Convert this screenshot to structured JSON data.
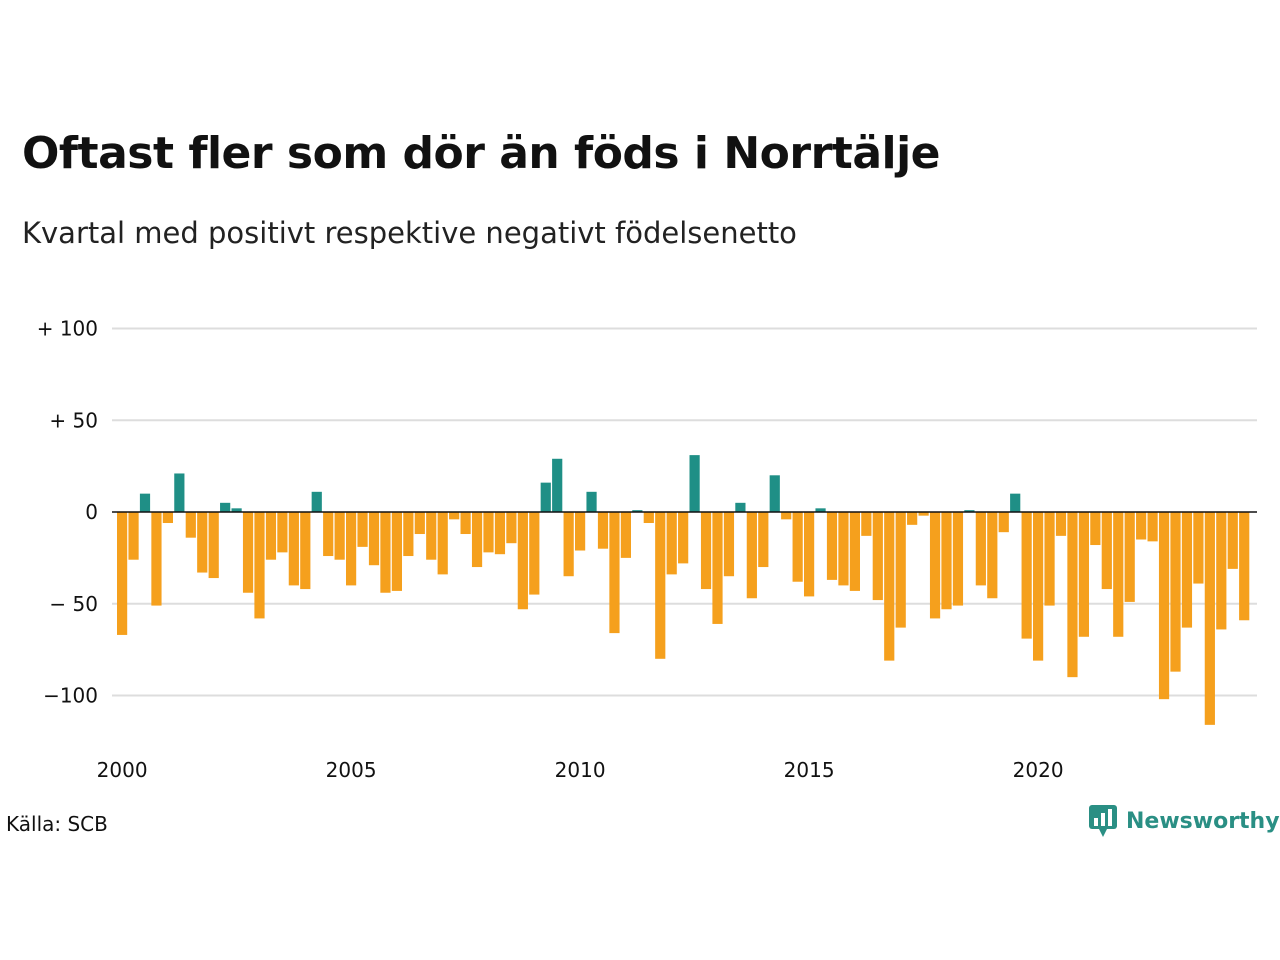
{
  "title": "Oftast fler som dör än föds i Norrtälje",
  "subtitle": "Kvartal med positivt respektive negativt födelsenetto",
  "source": "Källa: SCB",
  "brand": "Newsworthy",
  "colors": {
    "positive": "#1f8f86",
    "negative": "#f5a01d",
    "grid": "#dddddd",
    "zero": "#111111"
  },
  "chart_data": {
    "type": "bar",
    "ylim": [
      -120,
      100
    ],
    "ytick_values": [
      100,
      50,
      0,
      -50,
      -100
    ],
    "ytick_labels": [
      "+ 100",
      "+  50",
      "0",
      "− 50",
      "−100"
    ],
    "xtick_labels": [
      "2000",
      "2005",
      "2010",
      "2015",
      "2020"
    ],
    "start_year": 2000,
    "periods_per_year": 4,
    "grid": true,
    "values": [
      -67,
      -26,
      10,
      -51,
      -6,
      21,
      -14,
      -33,
      -36,
      5,
      2,
      -44,
      -58,
      -26,
      -22,
      -40,
      -42,
      11,
      -24,
      -26,
      -40,
      -19,
      -29,
      -44,
      -43,
      -24,
      -12,
      -26,
      -34,
      -4,
      -12,
      -30,
      -22,
      -23,
      -17,
      -53,
      -45,
      16,
      29,
      -35,
      -21,
      11,
      -20,
      -66,
      -25,
      1,
      -6,
      -80,
      -34,
      -28,
      31,
      -42,
      -61,
      -35,
      5,
      -47,
      -30,
      20,
      -4,
      -38,
      -46,
      2,
      -37,
      -40,
      -43,
      -13,
      -48,
      -81,
      -63,
      -7,
      -2,
      -58,
      -53,
      -51,
      1,
      -40,
      -47,
      -11,
      10,
      -69,
      -81,
      -51,
      -13,
      -90,
      -68,
      -18,
      -42,
      -68,
      -49,
      -15,
      -16,
      -102,
      -87,
      -63,
      -39,
      -116,
      -64,
      -31,
      -59
    ]
  }
}
